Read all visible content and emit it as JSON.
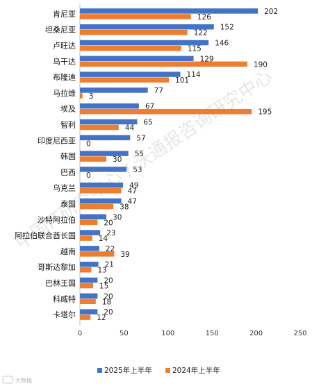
{
  "chart_data": {
    "type": "bar",
    "orientation": "horizontal",
    "categories": [
      "肯尼亚",
      "坦桑尼亚",
      "卢旺达",
      "乌干达",
      "布隆迪",
      "马拉维",
      "埃及",
      "智利",
      "印度尼西亚",
      "韩国",
      "巴西",
      "乌克兰",
      "泰国",
      "沙特阿拉伯",
      "阿拉伯联合酋长国",
      "越南",
      "哥斯达黎加",
      "巴林王国",
      "科威特",
      "卡塔尔"
    ],
    "series": [
      {
        "name": "2025年上半年",
        "color": "#4472c4",
        "values": [
          202,
          152,
          146,
          129,
          114,
          77,
          67,
          65,
          57,
          55,
          53,
          49,
          47,
          30,
          23,
          22,
          21,
          20,
          20,
          20
        ]
      },
      {
        "name": "2024年上半年",
        "color": "#ed7d31",
        "values": [
          126,
          122,
          115,
          190,
          101,
          3,
          195,
          44,
          0,
          30,
          0,
          47,
          38,
          20,
          14,
          39,
          13,
          15,
          18,
          12
        ]
      }
    ],
    "xlim": [
      0,
      250
    ],
    "xticks": [
      0,
      50,
      100,
      150,
      200,
      250
    ],
    "title": "",
    "xlabel": "",
    "ylabel": "",
    "grid": false,
    "legend": "bottom"
  },
  "watermark": "中国IT研究中心 / 沃通报咨询研究中心",
  "logo_text": "大数据"
}
